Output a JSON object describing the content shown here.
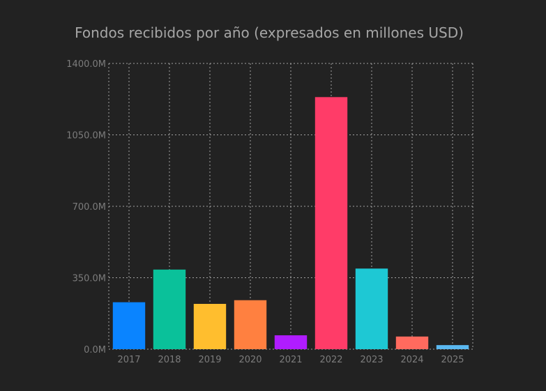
{
  "chart_data": {
    "type": "bar",
    "title": "Fondos recibidos por año (expresados en millones USD)",
    "xlabel": "",
    "ylabel": "",
    "categories": [
      "2017",
      "2018",
      "2019",
      "2020",
      "2021",
      "2022",
      "2023",
      "2024",
      "2025"
    ],
    "values": [
      230,
      390,
      222,
      240,
      68,
      1235,
      395,
      62,
      20
    ],
    "colors": [
      "#0a84ff",
      "#0ac19a",
      "#ffbe2e",
      "#ff8040",
      "#b01cff",
      "#ff3c68",
      "#1ec8d4",
      "#ff6a5e",
      "#5ab8f0"
    ],
    "ylim": [
      0,
      1400
    ],
    "yticks": [
      0,
      350,
      700,
      1050,
      1400
    ],
    "ytick_labels": [
      "0.0M",
      "350.0M",
      "700.0M",
      "1050.0M",
      "1400.0M"
    ],
    "grid": true,
    "legend": "none"
  }
}
